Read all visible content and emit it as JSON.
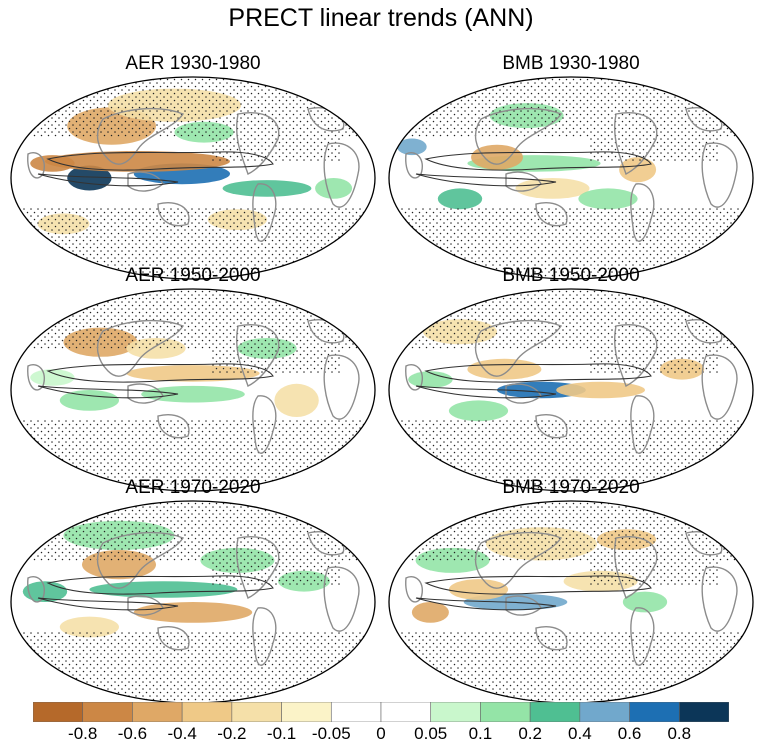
{
  "figure": {
    "title": "PRECT linear trends (ANN)"
  },
  "panels": [
    {
      "title": "AER 1930-1980"
    },
    {
      "title": "BMB 1930-1980"
    },
    {
      "title": "AER 1950-2000"
    },
    {
      "title": "BMB 1950-2000"
    },
    {
      "title": "AER 1970-2020"
    },
    {
      "title": "BMB 1970-2020"
    }
  ],
  "colorbar": {
    "colors": [
      "#b5692a",
      "#cc8745",
      "#dfa866",
      "#efc987",
      "#f5e0a9",
      "#fbf3c8",
      "#ffffff",
      "#ffffff",
      "#c9f7cc",
      "#94e4a7",
      "#4fbf92",
      "#71a8cc",
      "#1d6fb3",
      "#0c3658"
    ],
    "tick_labels": [
      "-0.8",
      "-0.6",
      "-0.4",
      "-0.2",
      "-0.1",
      "-0.05",
      "0",
      "0.05",
      "0.1",
      "0.2",
      "0.4",
      "0.6",
      "0.8"
    ]
  },
  "colors": {
    "land_outline": "#8c8c8c",
    "contour": "#333333",
    "stipple": "#222222"
  }
}
